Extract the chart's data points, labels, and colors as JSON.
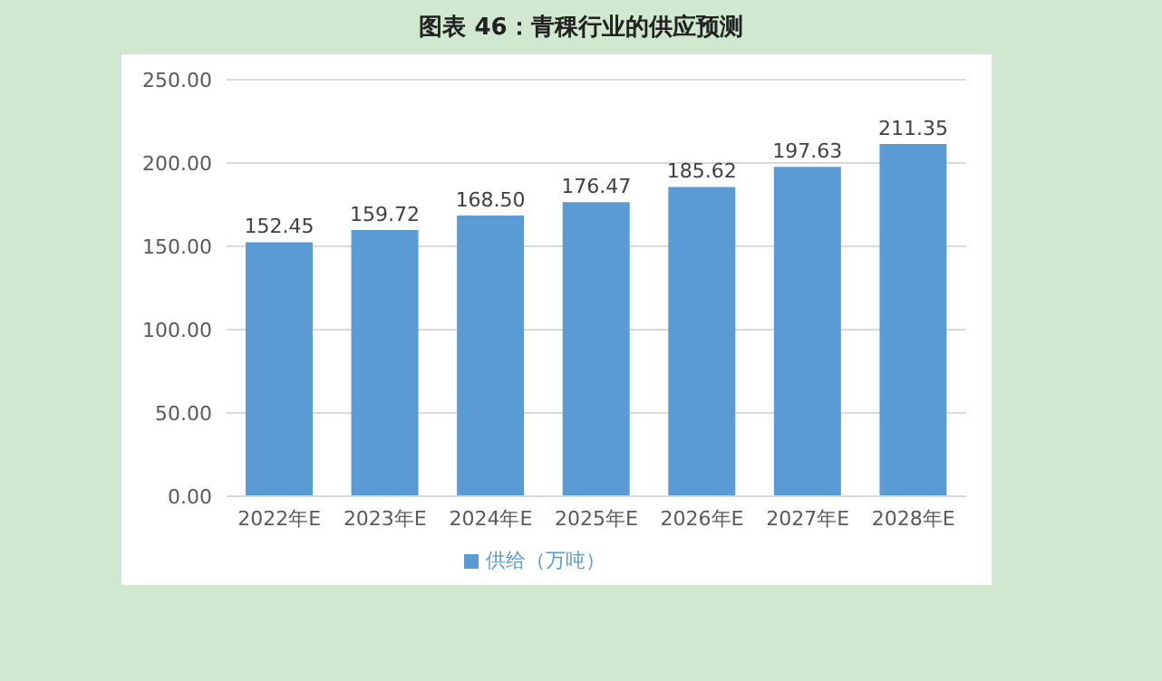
{
  "chart_data": {
    "type": "bar",
    "title": "图表 46：青稞行业的供应预测",
    "categories": [
      "2022年E",
      "2023年E",
      "2024年E",
      "2025年E",
      "2026年E",
      "2027年E",
      "2028年E"
    ],
    "series": [
      {
        "name": "供给（万吨）",
        "color": "#5b9bd5",
        "values": [
          152.45,
          159.72,
          168.5,
          176.47,
          185.62,
          197.63,
          211.35
        ],
        "value_labels": [
          "152.45",
          "159.72",
          "168.50",
          "176.47",
          "185.62",
          "197.63",
          "211.35"
        ]
      }
    ],
    "ylim": [
      0,
      250
    ],
    "yticks": [
      {
        "value": 0,
        "label": "0.00"
      },
      {
        "value": 50,
        "label": "50.00"
      },
      {
        "value": 100,
        "label": "100.00"
      },
      {
        "value": 150,
        "label": "150.00"
      },
      {
        "value": 200,
        "label": "200.00"
      },
      {
        "value": 250,
        "label": "250.00"
      }
    ],
    "grid": "y",
    "legend": "bottom"
  }
}
